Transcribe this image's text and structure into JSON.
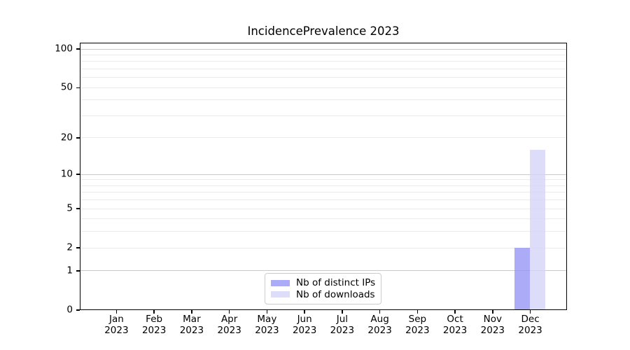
{
  "figure_title": "IncidencePrevalence 2023",
  "chart_data": {
    "type": "bar",
    "title": "IncidencePrevalence 2023",
    "categories": [
      "Jan",
      "Feb",
      "Mar",
      "Apr",
      "May",
      "Jun",
      "Jul",
      "Aug",
      "Sep",
      "Oct",
      "Nov",
      "Dec"
    ],
    "x_tick_year": "2023",
    "series": [
      {
        "name": "Nb of distinct IPs",
        "color": "rgba(150,150,245,0.8)",
        "values": [
          0,
          0,
          0,
          0,
          0,
          0,
          0,
          0,
          0,
          0,
          0,
          2
        ]
      },
      {
        "name": "Nb of downloads",
        "color": "rgba(212,212,248,0.8)",
        "values": [
          0,
          0,
          0,
          0,
          0,
          0,
          0,
          0,
          0,
          0,
          0,
          16
        ]
      }
    ],
    "xlabel": "",
    "ylabel": "",
    "yscale": "log1p",
    "ylim": [
      0,
      112
    ],
    "y_ticks": [
      0,
      1,
      2,
      5,
      10,
      20,
      50,
      100
    ],
    "y_major_gridlines": [
      1,
      10,
      100
    ],
    "y_minor_gridlines": [
      2,
      3,
      4,
      5,
      6,
      7,
      8,
      9,
      20,
      30,
      40,
      50,
      60,
      70,
      80,
      90
    ],
    "grid": true,
    "legend_position": "lower center"
  },
  "colors": {
    "grid_minor": "#ebebeb",
    "grid_major": "#c9c9c9",
    "spine": "#000000",
    "text": "#000000",
    "legend_border": "#cccccc",
    "background": "#ffffff"
  }
}
